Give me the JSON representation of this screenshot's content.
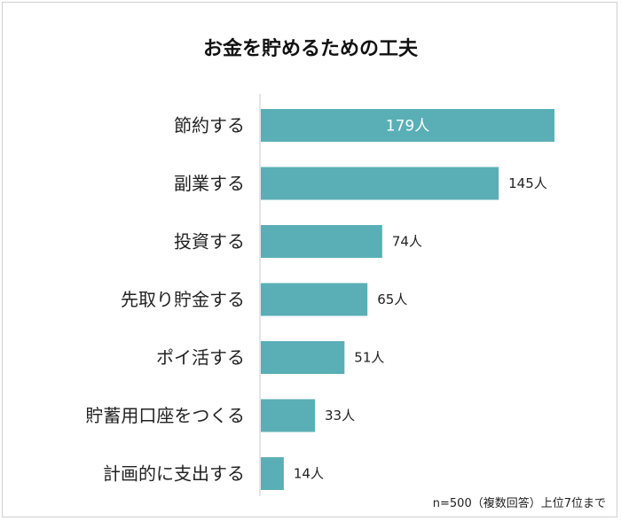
{
  "chart_data": {
    "type": "bar",
    "orientation": "horizontal",
    "title": "お金を貯めるための工夫",
    "categories": [
      "節約する",
      "副業する",
      "投資する",
      "先取り貯金する",
      "ポイ活する",
      "貯蓄用口座をつくる",
      "計画的に支出する"
    ],
    "values": [
      179,
      145,
      74,
      65,
      51,
      33,
      14
    ],
    "value_labels": [
      "179人",
      "145人",
      "74人",
      "65人",
      "51人",
      "33人",
      "14人"
    ],
    "unit": "人",
    "note": "n=500（複数回答）上位7位まで",
    "xlim": [
      0,
      179
    ],
    "bar_color": "#5aafb6",
    "grid": false,
    "legend": "none"
  }
}
